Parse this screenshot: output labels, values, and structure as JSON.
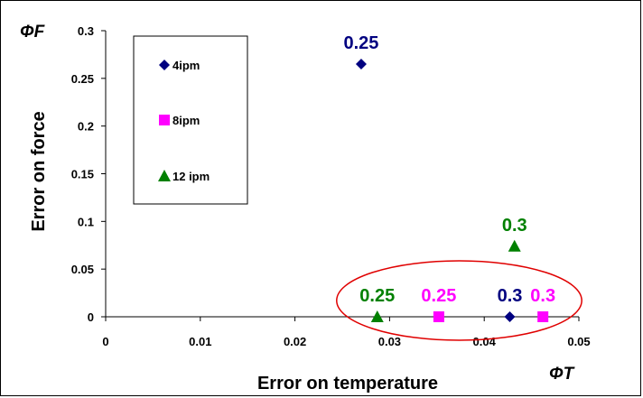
{
  "chart_data": {
    "type": "scatter",
    "xlabel": "Error on temperature",
    "ylabel": "Error on force",
    "x_symbol": "ΦT",
    "y_symbol": "ΦF",
    "xlim": [
      0,
      0.05
    ],
    "ylim": [
      0,
      0.3
    ],
    "x_ticks": [
      "0",
      "0.01",
      "0.02",
      "0.03",
      "0.04",
      "0.05"
    ],
    "y_ticks": [
      "0",
      "0.05",
      "0.1",
      "0.15",
      "0.2",
      "0.25",
      "0.3"
    ],
    "legend_position": "top-left",
    "series": [
      {
        "name": "4ipm",
        "marker": "diamond",
        "color": "#000080",
        "points": [
          {
            "x": 0.027,
            "y": 0.265,
            "label": "0.25"
          },
          {
            "x": 0.0427,
            "y": 0.0,
            "label": "0.3"
          }
        ]
      },
      {
        "name": "8ipm",
        "marker": "square",
        "color": "#FF00FF",
        "points": [
          {
            "x": 0.0352,
            "y": 0.0,
            "label": "0.25"
          },
          {
            "x": 0.0462,
            "y": 0.0,
            "label": "0.3"
          }
        ]
      },
      {
        "name": "12 ipm",
        "marker": "triangle",
        "color": "#008000",
        "points": [
          {
            "x": 0.0287,
            "y": 0.0,
            "label": "0.25"
          },
          {
            "x": 0.0432,
            "y": 0.074,
            "label": "0.3"
          }
        ]
      }
    ],
    "annotation": {
      "type": "ellipse",
      "color": "#E00000",
      "note": "highlighted cluster near zero force error"
    }
  }
}
